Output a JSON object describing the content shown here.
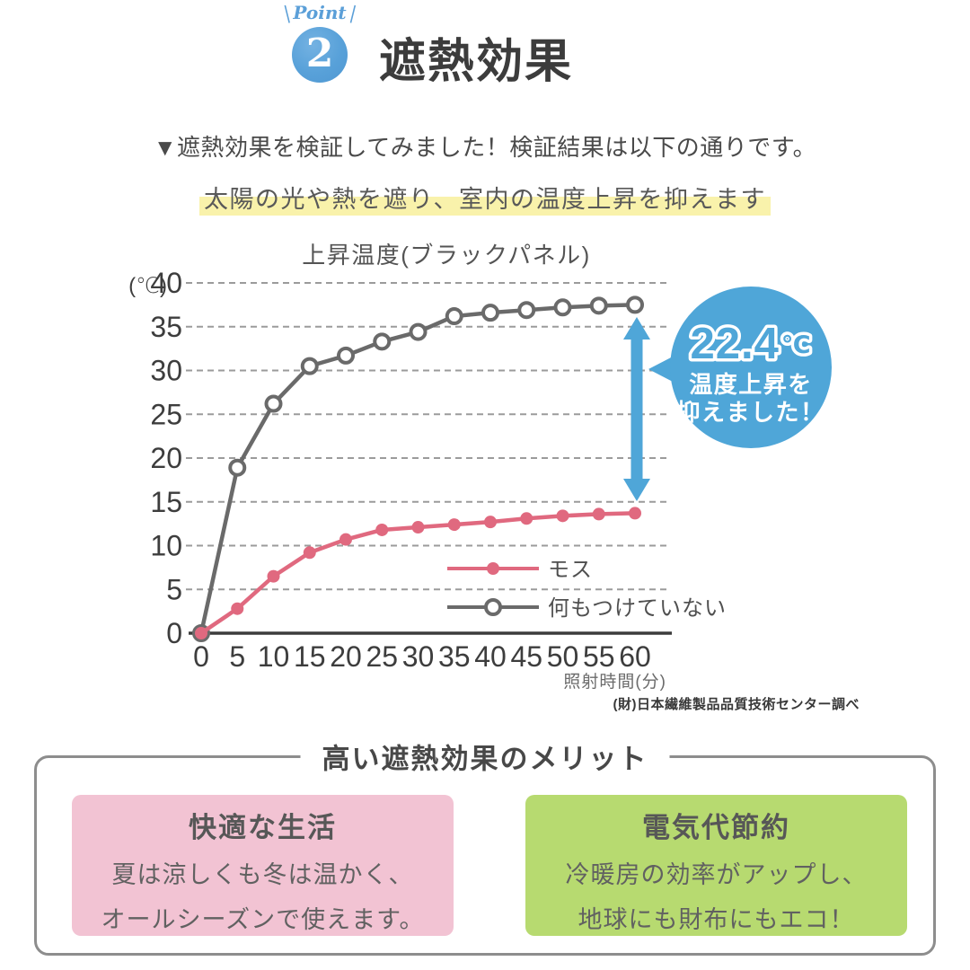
{
  "header": {
    "point_label": "Point",
    "point_number": "2",
    "title": "遮熱効果"
  },
  "intro": {
    "line1": "▼遮熱効果を検証してみました！検証結果は以下の通りです。",
    "highlight": "太陽の光や熱を遮り、室内の温度上昇を抑えます",
    "highlight_color": "#f9f2ab"
  },
  "chart_data": {
    "type": "line",
    "title": "上昇温度(ブラックパネル)",
    "y_unit_label": "(℃)",
    "xlabel": "照射時間(分)",
    "source": "(財)日本繊維製品品質技術センター調べ",
    "x": [
      0,
      5,
      10,
      15,
      20,
      25,
      30,
      35,
      40,
      45,
      50,
      55,
      60
    ],
    "y_ticks": [
      0,
      5,
      10,
      15,
      20,
      25,
      30,
      35,
      40
    ],
    "ylim": [
      0,
      40
    ],
    "grid": "dashed-horizontal",
    "legend_position": "inside-bottom-right",
    "series": [
      {
        "name": "モス",
        "color": "#e0697f",
        "marker": "filled-circle",
        "values": [
          0,
          2.8,
          6.5,
          9.2,
          10.7,
          11.8,
          12.1,
          12.4,
          12.7,
          13.1,
          13.4,
          13.6,
          13.7
        ]
      },
      {
        "name": "何もつけていない",
        "color": "#6a6a6a",
        "marker": "open-circle",
        "values": [
          0,
          18.9,
          26.2,
          30.5,
          31.7,
          33.3,
          34.4,
          36.2,
          36.6,
          36.9,
          37.2,
          37.4,
          37.5
        ]
      }
    ],
    "annotation": {
      "value": "22.4",
      "unit": "℃",
      "line1": "温度上昇を",
      "line2": "抑えました！",
      "color": "#4fa6d8"
    }
  },
  "merits": {
    "title": "高い遮熱効果のメリット",
    "cards": [
      {
        "heading": "快適な生活",
        "line1": "夏は涼しくも冬は温かく、",
        "line2": "オールシーズンで使えます。",
        "bg": "#f2c3d3"
      },
      {
        "heading": "電気代節約",
        "line1": "冷暖房の効率がアップし、",
        "line2": "地球にも財布にもエコ！",
        "bg": "#b7da70"
      }
    ]
  }
}
